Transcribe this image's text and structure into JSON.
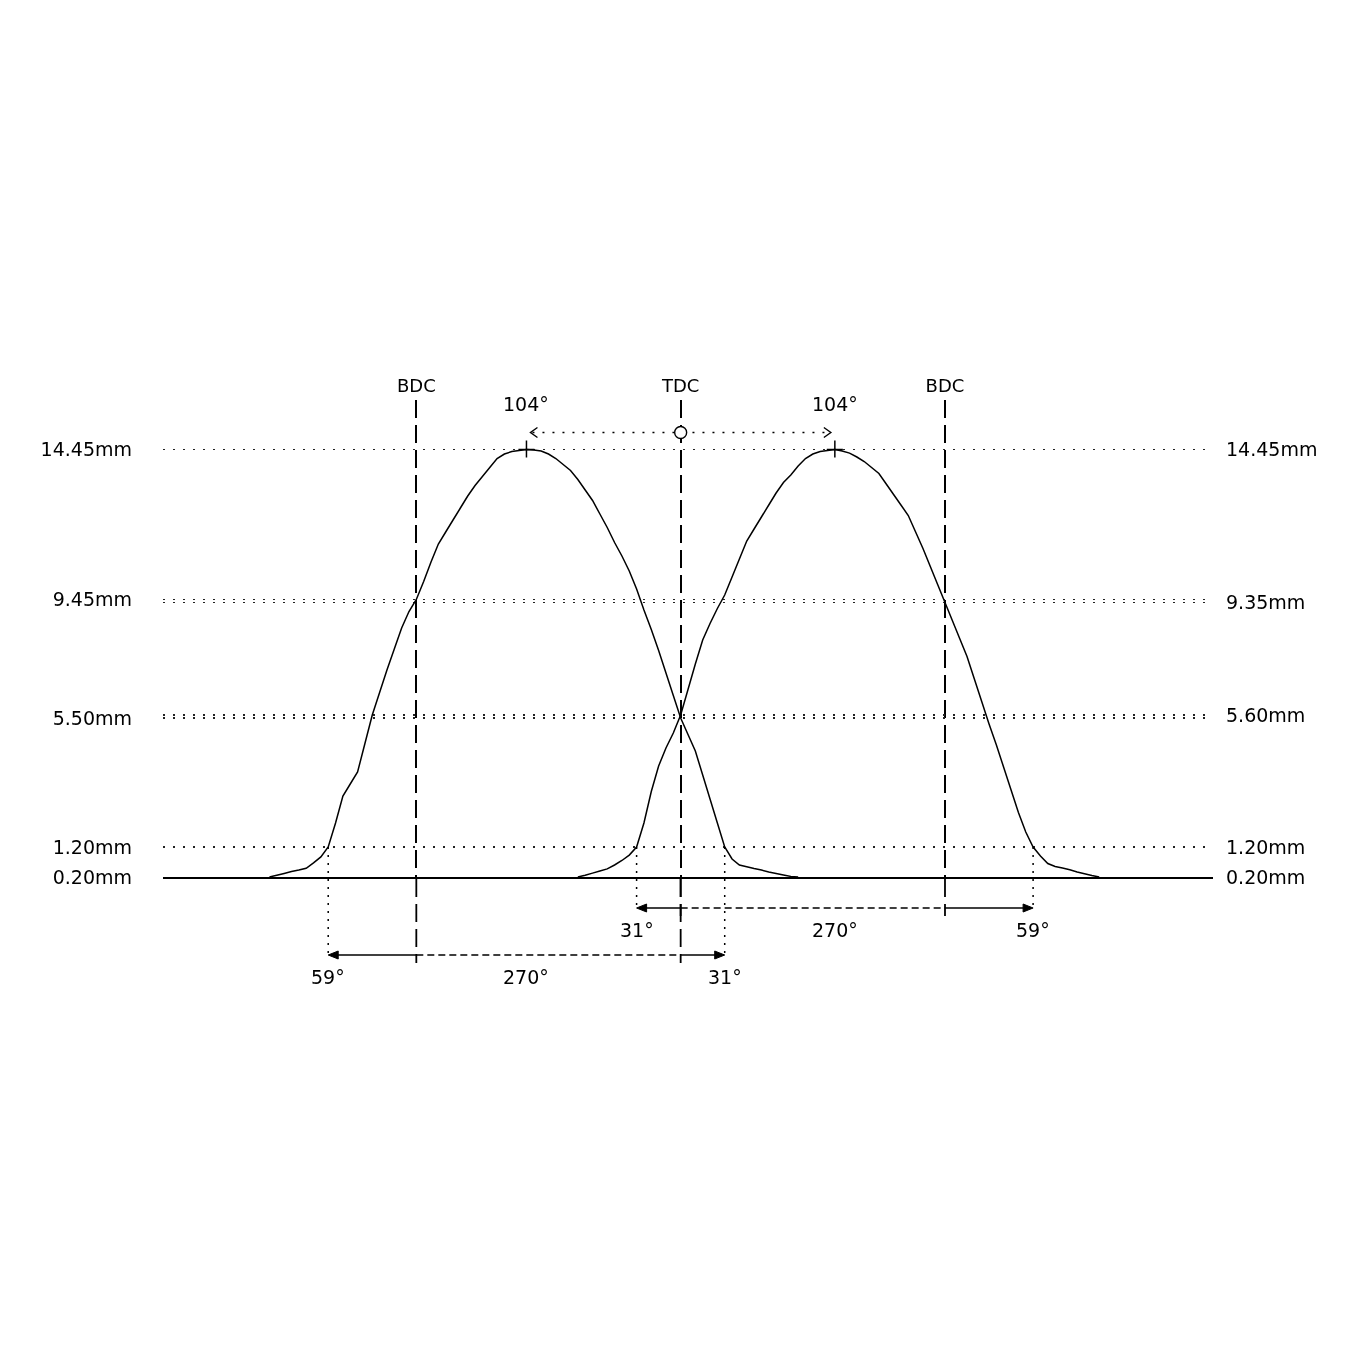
{
  "chart_data": {
    "type": "line",
    "categories": [
      null,
      null,
      null,
      null,
      null,
      null,
      null,
      null,
      null,
      null,
      null,
      null,
      null,
      null,
      null,
      null,
      null,
      null,
      null,
      null,
      null,
      null,
      null,
      null,
      null,
      null,
      null,
      null,
      null,
      null,
      null,
      null,
      null,
      null,
      "BDC",
      null,
      null,
      null,
      null,
      null,
      null,
      null,
      null,
      null,
      null,
      null,
      null,
      null,
      null,
      null,
      null,
      null,
      null,
      null,
      null,
      null,
      null,
      null,
      null,
      null,
      null,
      null,
      null,
      null,
      null,
      null,
      null,
      null,
      null,
      null,
      "TDC",
      null,
      null,
      null,
      null,
      null,
      null,
      null,
      null,
      null,
      null,
      null,
      null,
      null,
      null,
      null,
      null,
      null,
      null,
      null,
      null,
      null,
      null,
      null,
      null,
      null,
      null,
      null,
      null,
      null,
      null,
      null,
      null,
      null,
      null,
      null,
      "BDC",
      null,
      null,
      null,
      null,
      null,
      null,
      null,
      null,
      null,
      null,
      null,
      null,
      null,
      null,
      null,
      null,
      null,
      null,
      null,
      null,
      null,
      null,
      null,
      null,
      null,
      null,
      null,
      null,
      null,
      null,
      null,
      null,
      null,
      null,
      null,
      null
    ],
    "ylim": [
      0.2,
      16.1
    ],
    "yticks": [
      {
        "value": 0.2,
        "label": "0.20mm"
      },
      {
        "value": 1.2,
        "label": "1.20mm"
      },
      {
        "value": 5.5,
        "label": "5.50mm"
      },
      {
        "value": 9.45,
        "label": "9.45mm"
      },
      {
        "value": 14.45,
        "label": "14.45mm"
      }
    ],
    "y2lim": [
      0.2,
      16.1
    ],
    "y2ticks": [
      {
        "value": 0.2,
        "label": "0.20mm"
      },
      {
        "value": 1.2,
        "label": "1.20mm"
      },
      {
        "value": 5.6,
        "label": "5.60mm"
      },
      {
        "value": 9.35,
        "label": "9.35mm"
      },
      {
        "value": 14.45,
        "label": "14.45mm"
      }
    ],
    "grid": true,
    "series": [
      {
        "color": "#000000",
        "values": [
          null,
          null,
          null,
          null,
          null,
          null,
          null,
          null,
          null,
          null,
          null,
          null,
          null,
          null,
          0.2,
          0.26,
          0.32,
          0.38,
          0.43,
          0.49,
          0.67,
          0.87,
          1.2,
          2.0,
          2.9,
          3.3,
          3.7,
          4.65,
          5.6,
          6.35,
          7.1,
          7.8,
          8.5,
          9.05,
          9.45,
          10.05,
          10.7,
          11.3,
          11.7,
          12.1,
          12.5,
          12.9,
          13.25,
          13.55,
          13.85,
          14.15,
          14.3,
          14.38,
          14.42,
          14.45,
          14.43,
          14.4,
          14.3,
          14.15,
          13.95,
          13.75,
          13.45,
          13.1,
          12.75,
          12.3,
          11.85,
          11.35,
          10.9,
          10.4,
          9.8,
          9.1,
          8.45,
          7.75,
          7.0,
          6.25,
          5.5,
          4.95,
          4.4,
          3.6,
          2.8,
          2.0,
          1.2,
          0.8,
          0.6,
          0.54,
          0.48,
          0.43,
          0.37,
          0.32,
          0.27,
          0.22,
          0.2,
          null,
          null,
          null,
          null,
          null,
          null,
          null,
          null,
          null,
          null,
          null,
          null,
          null,
          null,
          null,
          null,
          null,
          null,
          null,
          null,
          null,
          null,
          null,
          null,
          null,
          null,
          null,
          null,
          null,
          null,
          null,
          null,
          null,
          null,
          null,
          null,
          null,
          null,
          null,
          null,
          null,
          null,
          null,
          null,
          null,
          null,
          null,
          null,
          null,
          null,
          null,
          null,
          null,
          null,
          null,
          null
        ]
      },
      {
        "color": "#000000",
        "axis": "y2",
        "values": [
          null,
          null,
          null,
          null,
          null,
          null,
          null,
          null,
          null,
          null,
          null,
          null,
          null,
          null,
          null,
          null,
          null,
          null,
          null,
          null,
          null,
          null,
          null,
          null,
          null,
          null,
          null,
          null,
          null,
          null,
          null,
          null,
          null,
          null,
          null,
          null,
          null,
          null,
          null,
          null,
          null,
          null,
          null,
          null,
          null,
          null,
          null,
          null,
          null,
          null,
          null,
          null,
          null,
          null,
          null,
          null,
          0.2,
          0.26,
          0.33,
          0.4,
          0.47,
          0.6,
          0.75,
          0.93,
          1.2,
          2.0,
          3.05,
          3.9,
          4.5,
          5.0,
          5.6,
          6.45,
          7.3,
          8.1,
          8.65,
          9.15,
          9.6,
          10.2,
          10.8,
          11.4,
          11.8,
          12.2,
          12.6,
          13.0,
          13.35,
          13.6,
          13.9,
          14.15,
          14.3,
          14.38,
          14.42,
          14.45,
          14.4,
          14.33,
          14.2,
          14.05,
          13.85,
          13.65,
          13.3,
          12.95,
          12.6,
          12.25,
          11.7,
          11.15,
          10.55,
          9.95,
          9.35,
          8.75,
          8.15,
          7.55,
          6.8,
          6.05,
          5.3,
          4.6,
          3.85,
          3.1,
          2.35,
          1.7,
          1.2,
          0.9,
          0.65,
          0.55,
          0.5,
          0.44,
          0.37,
          0.31,
          0.25,
          0.2,
          null,
          null,
          null,
          null,
          null,
          null,
          null,
          null,
          null,
          null,
          null,
          null,
          null,
          null,
          null
        ]
      }
    ],
    "annotations": [
      {
        "text": "104°",
        "y": 14.45
      },
      {
        "text": "104°",
        "y": 14.45
      },
      {
        "text": "59°",
        "y": 1.2
      },
      "270°",
      {
        "text": "31°",
        "y": 1.2
      },
      {
        "text": "31°",
        "y": 1.2
      },
      "270°",
      {
        "text": "59°",
        "y": 1.2
      }
    ]
  }
}
